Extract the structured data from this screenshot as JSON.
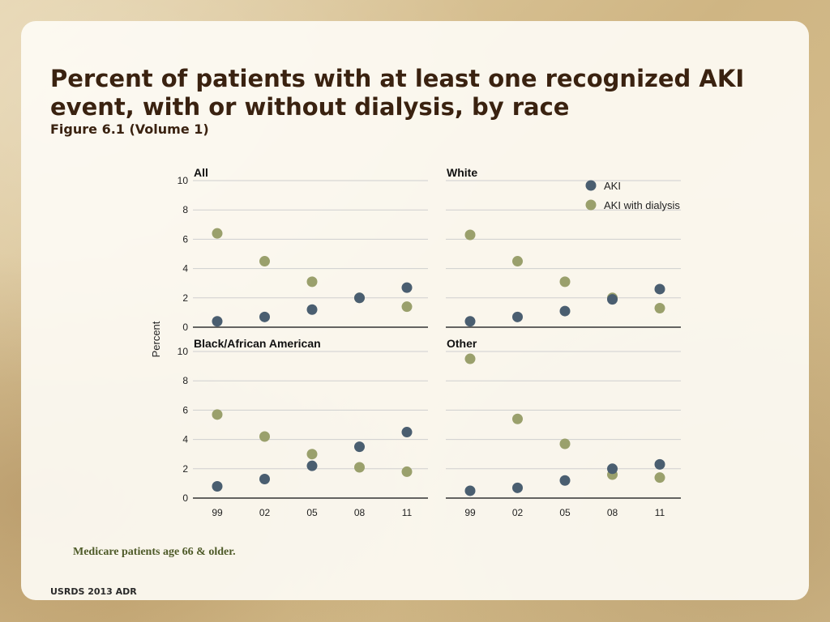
{
  "title": "Percent of patients with at least one recognized AKI event, with or without dialysis, by race",
  "subtitle": "Figure 6.1 (Volume 1)",
  "note": "Medicare patients age 66 & older.",
  "footer": "USRDS 2013 ADR",
  "colors": {
    "aki": "#4a5e70",
    "aki_dialysis": "#9aa06c",
    "grid": "#cfcfcf",
    "axis": "#333333"
  },
  "chart_data": {
    "type": "scatter",
    "ylabel": "Percent",
    "xlabel": "",
    "categories": [
      "99",
      "02",
      "05",
      "08",
      "11"
    ],
    "ylim": [
      0,
      10
    ],
    "yticks": [
      0,
      2,
      4,
      6,
      8,
      10
    ],
    "legend": {
      "position": "top-right",
      "entries": [
        "AKI",
        "AKI with dialysis"
      ]
    },
    "panels": [
      {
        "title": "All",
        "series": [
          {
            "name": "AKI",
            "values": [
              0.4,
              0.7,
              1.2,
              2.0,
              2.7
            ]
          },
          {
            "name": "AKI with dialysis",
            "values": [
              6.4,
              4.5,
              3.1,
              2.0,
              1.4
            ]
          }
        ]
      },
      {
        "title": "White",
        "series": [
          {
            "name": "AKI",
            "values": [
              0.4,
              0.7,
              1.1,
              1.9,
              2.6
            ]
          },
          {
            "name": "AKI with dialysis",
            "values": [
              6.3,
              4.5,
              3.1,
              2.0,
              1.3
            ]
          }
        ]
      },
      {
        "title": "Black/African American",
        "series": [
          {
            "name": "AKI",
            "values": [
              0.8,
              1.3,
              2.2,
              3.5,
              4.5
            ]
          },
          {
            "name": "AKI with dialysis",
            "values": [
              5.7,
              4.2,
              3.0,
              2.1,
              1.8
            ]
          }
        ]
      },
      {
        "title": "Other",
        "series": [
          {
            "name": "AKI",
            "values": [
              0.5,
              0.7,
              1.2,
              2.0,
              2.3
            ]
          },
          {
            "name": "AKI with dialysis",
            "values": [
              9.5,
              5.4,
              3.7,
              1.6,
              1.4
            ]
          }
        ]
      }
    ]
  }
}
